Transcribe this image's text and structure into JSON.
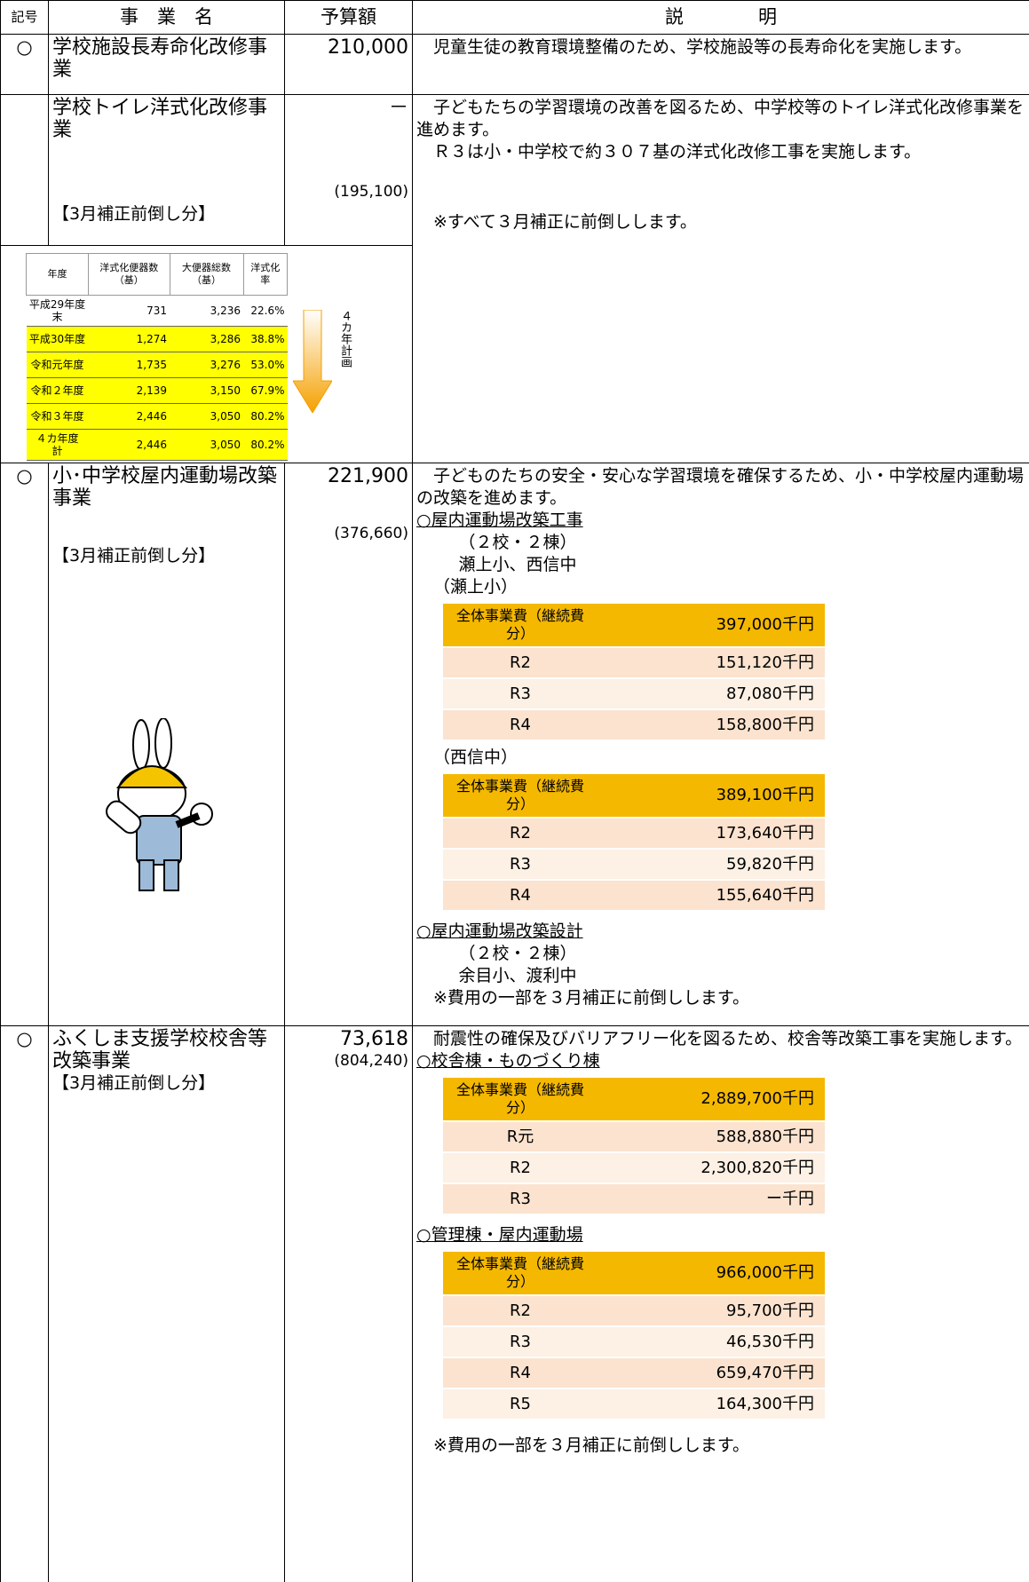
{
  "header": {
    "mark": "記号",
    "name": "事　業　名",
    "budget": "予算額",
    "description": "説　　　　明"
  },
  "rows": [
    {
      "mark": "○",
      "name": "学校施設長寿命化改修事業",
      "budget": "210,000",
      "description": [
        "児童生徒の教育環境整備のため、学校施設等の長寿命化を実施します。"
      ]
    },
    {
      "name": "学校トイレ洋式化改修事業",
      "budget": "－",
      "sub_label": "【3月補正前倒し分】",
      "sub_budget": "(195,100)",
      "description": [
        "子どもたちの学習環境の改善を図るため、中学校等のトイレ洋式化改修事業を進めます。",
        "Ｒ３は小・中学校で約３０７基の洋式化改修工事を実施します。"
      ],
      "note": "※すべて３月補正に前倒しします。",
      "toilet_table": {
        "header": [
          "年度",
          "洋式化便器数（基）",
          "大便器総数（基）",
          "洋式化率"
        ],
        "rows": [
          [
            "平成29年度末",
            "731",
            "3,236",
            "22.6%"
          ],
          [
            "平成30年度",
            "1,274",
            "3,286",
            "38.8%"
          ],
          [
            "令和元年度",
            "1,735",
            "3,276",
            "53.0%"
          ],
          [
            "令和２年度",
            "2,139",
            "3,150",
            "67.9%"
          ],
          [
            "令和３年度",
            "2,446",
            "3,050",
            "80.2%"
          ],
          [
            "４カ年度　計",
            "2,446",
            "3,050",
            "80.2%"
          ]
        ],
        "arrow_label": "４カ年計画"
      }
    },
    {
      "mark": "○",
      "name": "小･中学校屋内運動場改築事業",
      "budget": "221,900",
      "sub_label": "【3月補正前倒し分】",
      "sub_budget": "(376,660)",
      "description": [
        "子どものたちの安全・安心な学習環境を確保するため、小・中学校屋内運動場の改築を進めます。"
      ],
      "sections": [
        {
          "heading": "○屋内運動場改築工事",
          "lines": [
            "（２校・２棟）",
            "瀬上小、西信中"
          ],
          "tables": [
            {
              "caption": "（瀬上小）",
              "header": [
                "全体事業費（継続費分）",
                "397,000千円"
              ],
              "rows": [
                [
                  "R2",
                  "151,120千円"
                ],
                [
                  "R3",
                  "87,080千円"
                ],
                [
                  "R4",
                  "158,800千円"
                ]
              ]
            },
            {
              "caption": "（西信中）",
              "header": [
                "全体事業費（継続費分）",
                "389,100千円"
              ],
              "rows": [
                [
                  "R2",
                  "173,640千円"
                ],
                [
                  "R3",
                  "59,820千円"
                ],
                [
                  "R4",
                  "155,640千円"
                ]
              ]
            }
          ]
        },
        {
          "heading": "○屋内運動場改築設計",
          "lines": [
            "（２校・２棟）",
            "余目小、渡利中",
            "※費用の一部を３月補正に前倒しします。"
          ]
        }
      ]
    },
    {
      "mark": "○",
      "name": "ふくしま支援学校校舎等改築事業",
      "budget": "73,618",
      "sub_label": "【3月補正前倒し分】",
      "sub_budget": "(804,240)",
      "description": [
        "耐震性の確保及びバリアフリー化を図るため、校舎等改築工事を実施します。"
      ],
      "sections": [
        {
          "heading": "○校舎棟・ものづくり棟",
          "tables": [
            {
              "header": [
                "全体事業費（継続費分）",
                "2,889,700千円"
              ],
              "rows": [
                [
                  "R元",
                  "588,880千円"
                ],
                [
                  "R2",
                  "2,300,820千円"
                ],
                [
                  "R3",
                  "ー千円"
                ]
              ]
            }
          ]
        },
        {
          "heading": "○管理棟・屋内運動場",
          "tables": [
            {
              "header": [
                "全体事業費（継続費分）",
                "966,000千円"
              ],
              "rows": [
                [
                  "R2",
                  "95,700千円"
                ],
                [
                  "R3",
                  "46,530千円"
                ],
                [
                  "R4",
                  "659,470千円"
                ],
                [
                  "R5",
                  "164,300千円"
                ]
              ]
            }
          ]
        }
      ],
      "note": "※費用の一部を３月補正に前倒しします。"
    }
  ]
}
